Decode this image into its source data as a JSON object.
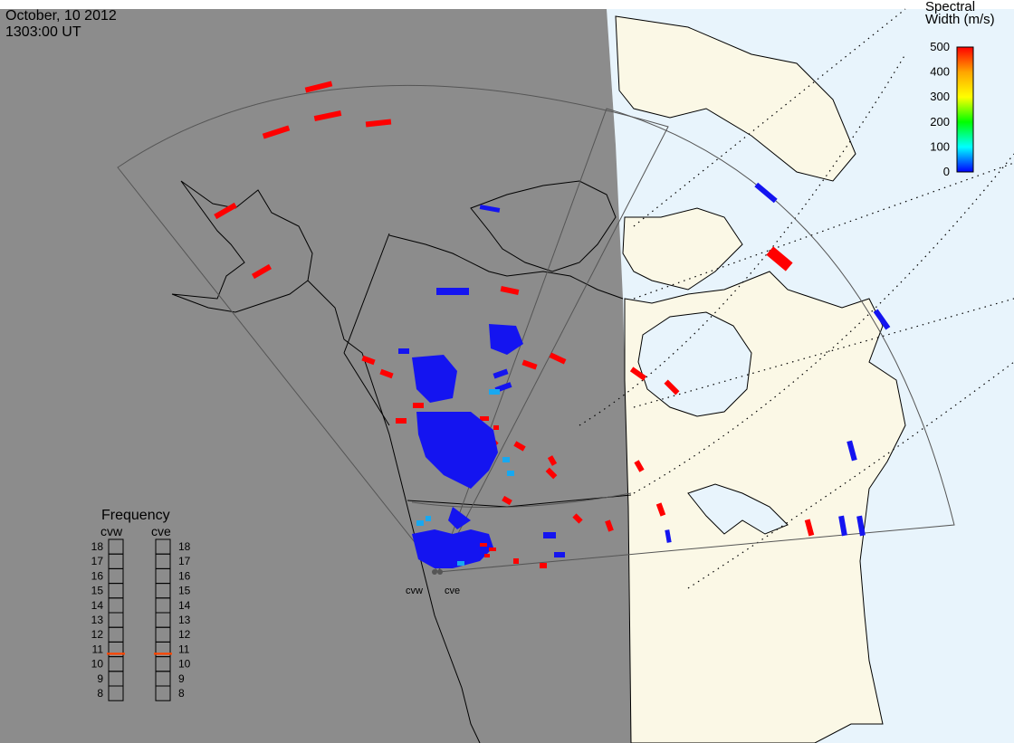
{
  "title": {
    "date": "October, 10 2012",
    "time": "1303:00 UT"
  },
  "colorbar": {
    "title_line1": "Spectral",
    "title_line2": "Width (m/s)",
    "ticks": [
      "500",
      "400",
      "300",
      "200",
      "100",
      "0"
    ],
    "range": [
      0,
      500
    ],
    "colors": [
      "#ff0000",
      "#ffa500",
      "#ffff00",
      "#00ff00",
      "#00ffff",
      "#0000ff"
    ]
  },
  "frequency": {
    "title": "Frequency",
    "radars": [
      "cvw",
      "cve"
    ],
    "ticks": [
      "18",
      "17",
      "16",
      "15",
      "14",
      "13",
      "12",
      "11",
      "10",
      "9",
      "8"
    ],
    "value_mhz": {
      "cvw": 10.7,
      "cve": 10.7
    },
    "marker_color": "#ff4500"
  },
  "sites": {
    "cvw": "cvw",
    "cve": "cve"
  },
  "colors": {
    "night": "#8c8c8c",
    "day_land": "#fbf8e6",
    "day_ocean": "#e8f4fc",
    "scatter_low": "#1414f0",
    "scatter_mid": "#18a8f0",
    "scatter_high": "#ff0000"
  }
}
